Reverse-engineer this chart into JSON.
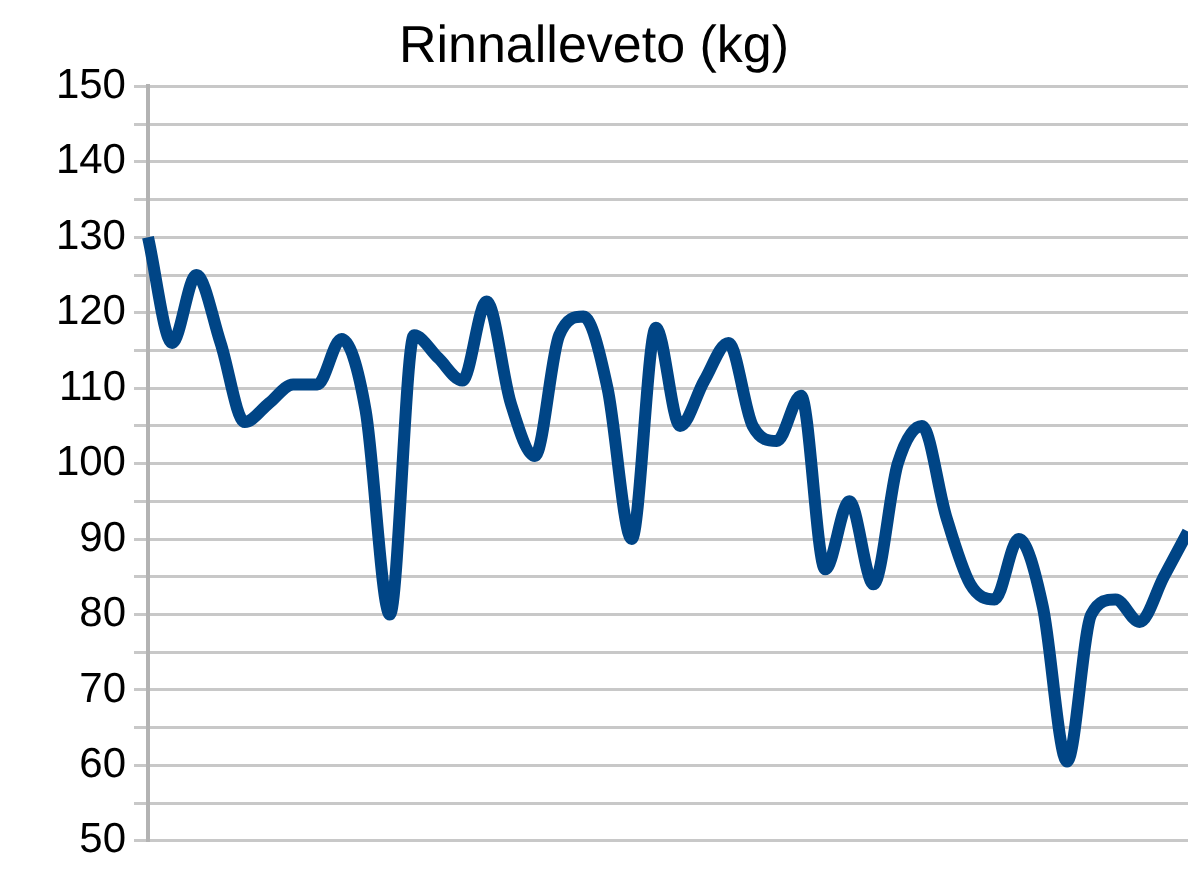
{
  "chart_data": {
    "type": "line",
    "title": "Rinnalleveto (kg)",
    "categories": [
      null,
      null,
      null,
      null,
      null,
      null,
      null,
      null,
      null,
      null,
      null,
      null,
      null,
      null,
      null,
      null,
      null,
      null,
      null,
      null,
      null,
      null,
      null,
      null,
      null,
      null,
      null,
      null,
      null,
      null,
      null,
      null,
      null,
      null,
      null,
      null,
      null,
      null,
      null,
      null,
      null,
      null,
      null,
      null
    ],
    "series": [
      {
        "color": "#004586",
        "values": [
          130,
          116,
          125,
          116,
          105.5,
          108,
          110.5,
          110.5,
          116.5,
          107,
          80,
          117,
          114,
          111,
          121.5,
          108,
          101,
          117,
          119.5,
          110,
          90,
          118,
          105,
          111,
          116,
          105,
          103,
          109,
          86,
          95,
          84,
          100,
          105,
          93,
          84,
          82,
          90,
          81,
          60.5,
          80,
          82,
          79,
          85,
          91
        ]
      }
    ],
    "ylim": [
      50,
      150
    ],
    "yticks": [
      50,
      {
        "value": 55,
        "label": null
      },
      60,
      {
        "value": 65,
        "label": null
      },
      70,
      {
        "value": 75,
        "label": null
      },
      80,
      {
        "value": 85,
        "label": null
      },
      90,
      {
        "value": 95,
        "label": null
      },
      100,
      {
        "value": 105,
        "label": null
      },
      110,
      {
        "value": 115,
        "label": null
      },
      120,
      {
        "value": 125,
        "label": null
      },
      130,
      {
        "value": 135,
        "label": null
      },
      140,
      {
        "value": 145,
        "label": null
      },
      150
    ],
    "grid": "y",
    "legend": false,
    "tick_labels": "y",
    "marker": "none",
    "line_style": "solid"
  }
}
